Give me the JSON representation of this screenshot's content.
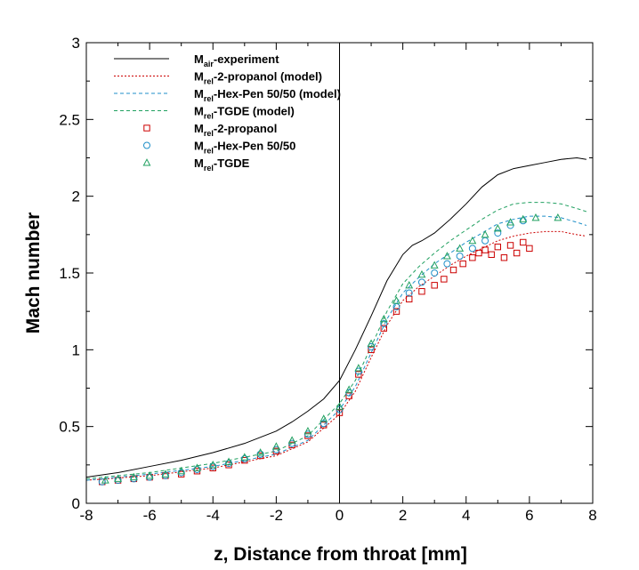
{
  "chart_data": {
    "type": "line",
    "xlabel": "z, Distance from throat [mm]",
    "ylabel": "Mach number",
    "xlim": [
      -8,
      8
    ],
    "ylim": [
      0,
      3
    ],
    "xticks": [
      -8,
      -6,
      -4,
      -2,
      0,
      2,
      4,
      6,
      8
    ],
    "yticks": [
      0,
      0.5,
      1,
      1.5,
      2,
      2.5,
      3
    ],
    "xtick_labels": [
      "-8",
      "-6",
      "-4",
      "-2",
      "0",
      "2",
      "4",
      "6",
      "8"
    ],
    "ytick_labels": [
      "0",
      "0.5",
      "1",
      "1.5",
      "2",
      "2.5",
      "3"
    ],
    "reference_line": {
      "x": 0
    },
    "grid": false,
    "legend_position": "top-left",
    "series": [
      {
        "name": "Mair-experiment",
        "label_main": "M",
        "label_sub": "air",
        "label_rest": "-experiment",
        "kind": "line",
        "dash": "solid",
        "color": "#000000",
        "x": [
          -8,
          -7,
          -6,
          -5,
          -4,
          -3,
          -2,
          -1.5,
          -1,
          -0.5,
          0,
          0.5,
          1,
          1.5,
          2,
          2.3,
          2.6,
          3,
          3.5,
          4,
          4.5,
          5,
          5.5,
          6,
          6.5,
          7,
          7.5,
          7.8
        ],
        "y": [
          0.17,
          0.2,
          0.24,
          0.28,
          0.33,
          0.39,
          0.47,
          0.53,
          0.6,
          0.68,
          0.8,
          1.0,
          1.22,
          1.45,
          1.62,
          1.68,
          1.71,
          1.76,
          1.85,
          1.95,
          2.06,
          2.14,
          2.18,
          2.2,
          2.22,
          2.24,
          2.25,
          2.24
        ]
      },
      {
        "name": "Mrel-2-propanol (model)",
        "label_main": "M",
        "label_sub": "rel",
        "label_rest": "-2-propanol (model)",
        "kind": "line",
        "dash": "dotted",
        "color": "#cc0000",
        "x": [
          -8,
          -6,
          -4,
          -2,
          -1,
          0,
          0.5,
          1,
          1.5,
          2,
          2.5,
          3,
          3.5,
          4,
          4.5,
          5,
          5.5,
          6,
          6.5,
          7,
          7.5,
          7.8
        ],
        "y": [
          0.15,
          0.18,
          0.23,
          0.31,
          0.4,
          0.58,
          0.73,
          0.95,
          1.16,
          1.32,
          1.41,
          1.48,
          1.55,
          1.61,
          1.66,
          1.71,
          1.74,
          1.76,
          1.77,
          1.77,
          1.75,
          1.74
        ]
      },
      {
        "name": "Mrel-Hex-Pen 50/50 (model)",
        "label_main": "M",
        "label_sub": "rel",
        "label_rest": "-Hex-Pen 50/50 (model)",
        "kind": "line",
        "dash": "dashed",
        "color": "#1f8fc8",
        "x": [
          -8,
          -6,
          -4,
          -2,
          -1,
          0,
          0.5,
          1,
          1.5,
          2,
          2.5,
          3,
          3.5,
          4,
          4.5,
          5,
          5.5,
          6,
          6.5,
          7,
          7.5,
          7.8
        ],
        "y": [
          0.15,
          0.19,
          0.24,
          0.32,
          0.41,
          0.61,
          0.76,
          0.98,
          1.2,
          1.37,
          1.47,
          1.56,
          1.63,
          1.7,
          1.76,
          1.82,
          1.85,
          1.87,
          1.87,
          1.86,
          1.83,
          1.81
        ]
      },
      {
        "name": "Mrel-TGDE (model)",
        "label_main": "M",
        "label_sub": "rel",
        "label_rest": "-TGDE (model)",
        "kind": "line",
        "dash": "dashed",
        "color": "#20a060",
        "x": [
          -8,
          -6,
          -4,
          -2,
          -1,
          0,
          0.5,
          1,
          1.5,
          2,
          2.5,
          3,
          3.5,
          4,
          4.5,
          5,
          5.5,
          6,
          6.5,
          7,
          7.5,
          7.8
        ],
        "y": [
          0.16,
          0.2,
          0.26,
          0.34,
          0.44,
          0.65,
          0.8,
          1.02,
          1.25,
          1.43,
          1.54,
          1.63,
          1.71,
          1.78,
          1.85,
          1.91,
          1.95,
          1.96,
          1.96,
          1.95,
          1.92,
          1.9
        ]
      },
      {
        "name": "Mrel-2-propanol",
        "label_main": "M",
        "label_sub": "rel",
        "label_rest": "-2-propanol",
        "kind": "scatter",
        "marker": "square",
        "color": "#cc0000",
        "x": [
          -7.5,
          -7,
          -6.5,
          -6,
          -5.5,
          -5,
          -4.5,
          -4,
          -3.5,
          -3,
          -2.5,
          -2,
          -1.5,
          -1,
          -0.5,
          0,
          0.3,
          0.6,
          1,
          1.4,
          1.8,
          2.2,
          2.6,
          3,
          3.3,
          3.6,
          3.9,
          4.2,
          4.4,
          4.6,
          4.8,
          5,
          5.2,
          5.4,
          5.6,
          5.8,
          6
        ],
        "y": [
          0.14,
          0.15,
          0.16,
          0.17,
          0.18,
          0.19,
          0.21,
          0.23,
          0.25,
          0.28,
          0.31,
          0.34,
          0.38,
          0.44,
          0.51,
          0.59,
          0.7,
          0.84,
          1.0,
          1.14,
          1.25,
          1.33,
          1.38,
          1.42,
          1.46,
          1.52,
          1.56,
          1.6,
          1.63,
          1.65,
          1.62,
          1.67,
          1.6,
          1.68,
          1.63,
          1.7,
          1.66
        ]
      },
      {
        "name": "Mrel-Hex-Pen 50/50",
        "label_main": "M",
        "label_sub": "rel",
        "label_rest": "-Hex-Pen 50/50",
        "kind": "scatter",
        "marker": "circle",
        "color": "#1f8fc8",
        "x": [
          -7.5,
          -7,
          -6.5,
          -6,
          -5.5,
          -5,
          -4.5,
          -4,
          -3.5,
          -3,
          -2.5,
          -2,
          -1.5,
          -1,
          -0.5,
          0,
          0.3,
          0.6,
          1,
          1.4,
          1.8,
          2.2,
          2.6,
          3,
          3.4,
          3.8,
          4.2,
          4.6,
          5,
          5.4,
          5.8
        ],
        "y": [
          0.14,
          0.15,
          0.16,
          0.17,
          0.18,
          0.2,
          0.22,
          0.24,
          0.26,
          0.29,
          0.32,
          0.35,
          0.39,
          0.45,
          0.52,
          0.61,
          0.72,
          0.86,
          1.02,
          1.17,
          1.28,
          1.37,
          1.44,
          1.5,
          1.56,
          1.61,
          1.66,
          1.71,
          1.76,
          1.81,
          1.84
        ]
      },
      {
        "name": "Mrel-TGDE",
        "label_main": "M",
        "label_sub": "rel",
        "label_rest": "-TGDE",
        "kind": "scatter",
        "marker": "triangle",
        "color": "#20a060",
        "x": [
          -7.4,
          -7,
          -6.5,
          -6,
          -5.5,
          -5,
          -4.5,
          -4,
          -3.5,
          -3,
          -2.5,
          -2,
          -1.5,
          -1,
          -0.5,
          0,
          0.3,
          0.6,
          1,
          1.4,
          1.8,
          2.2,
          2.6,
          3,
          3.4,
          3.8,
          4.2,
          4.6,
          5,
          5.4,
          5.8,
          6.2,
          6.9
        ],
        "y": [
          0.15,
          0.16,
          0.17,
          0.18,
          0.19,
          0.21,
          0.23,
          0.25,
          0.27,
          0.3,
          0.33,
          0.37,
          0.41,
          0.47,
          0.55,
          0.63,
          0.74,
          0.88,
          1.04,
          1.2,
          1.32,
          1.42,
          1.49,
          1.55,
          1.61,
          1.66,
          1.71,
          1.75,
          1.79,
          1.83,
          1.85,
          1.86,
          1.86
        ]
      }
    ]
  }
}
